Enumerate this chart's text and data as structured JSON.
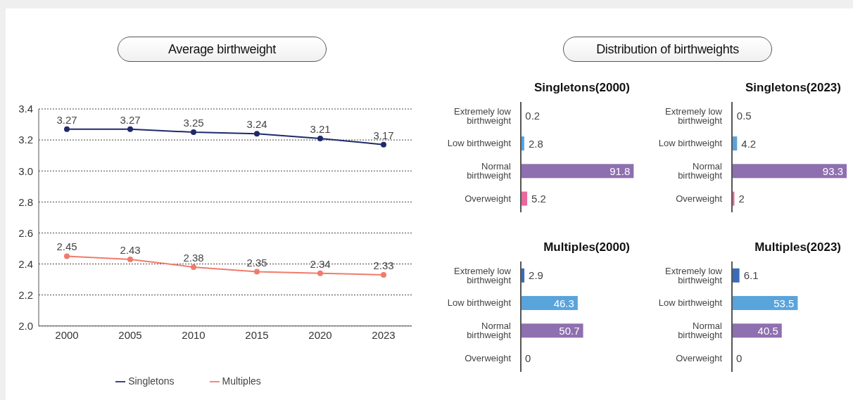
{
  "chart_data": [
    {
      "type": "line",
      "title": "Average birthweight",
      "categories": [
        "2000",
        "2005",
        "2010",
        "2015",
        "2020",
        "2023"
      ],
      "series": [
        {
          "name": "Singletons",
          "color": "#1f2a6b",
          "values": [
            3.27,
            3.27,
            3.25,
            3.24,
            3.21,
            3.17
          ]
        },
        {
          "name": "Multiples",
          "color": "#f07b6b",
          "values": [
            2.45,
            2.43,
            2.38,
            2.35,
            2.34,
            2.33
          ]
        }
      ],
      "ylim": [
        2.0,
        3.4
      ],
      "yticks": [
        {
          "value": 2,
          "label": "2.0"
        },
        2.2,
        2.4,
        2.6,
        2.8,
        {
          "value": 3,
          "label": "3.0"
        },
        3.2,
        3.4
      ],
      "grid": "y",
      "legend": "bottom",
      "marker": "circle",
      "data_labels": true
    },
    {
      "type": "bar",
      "orientation": "horizontal",
      "title": "Singletons(2000)",
      "annotations": [
        "Distribution of birthweights"
      ],
      "categories": [
        "Extremely low birthweight",
        "Low birthweight",
        "Normal birthweight",
        "Overweight"
      ],
      "values": [
        0.2,
        2.8,
        91.8,
        5.2
      ],
      "colors": [
        "#3b6cb7",
        "#5aa4dc",
        "#8e6fb0",
        "#e8699b"
      ],
      "data_labels": true
    },
    {
      "type": "bar",
      "orientation": "horizontal",
      "title": "Singletons(2023)",
      "categories": [
        "Extremely low birthweight",
        "Low birthweight",
        "Normal birthweight",
        "Overweight"
      ],
      "values": [
        0.5,
        4.2,
        93.3,
        2
      ],
      "colors": [
        "#3b6cb7",
        "#5aa4dc",
        "#8e6fb0",
        "#e8699b"
      ],
      "data_labels": true
    },
    {
      "type": "bar",
      "orientation": "horizontal",
      "title": "Multiples(2000)",
      "categories": [
        "Extremely low birthweight",
        "Low birthweight",
        "Normal birthweight",
        "Overweight"
      ],
      "values": [
        2.9,
        46.3,
        50.7,
        0
      ],
      "colors": [
        "#3b6cb7",
        "#5aa4dc",
        "#8e6fb0",
        "#e8699b"
      ],
      "data_labels": true
    },
    {
      "type": "bar",
      "orientation": "horizontal",
      "title": "Multiples(2023)",
      "categories": [
        "Extremely low birthweight",
        "Low birthweight",
        "Normal birthweight",
        "Overweight"
      ],
      "values": [
        6.1,
        53.5,
        40.5,
        0
      ],
      "colors": [
        "#3b6cb7",
        "#5aa4dc",
        "#8e6fb0",
        "#e8699b"
      ],
      "data_labels": true
    }
  ]
}
